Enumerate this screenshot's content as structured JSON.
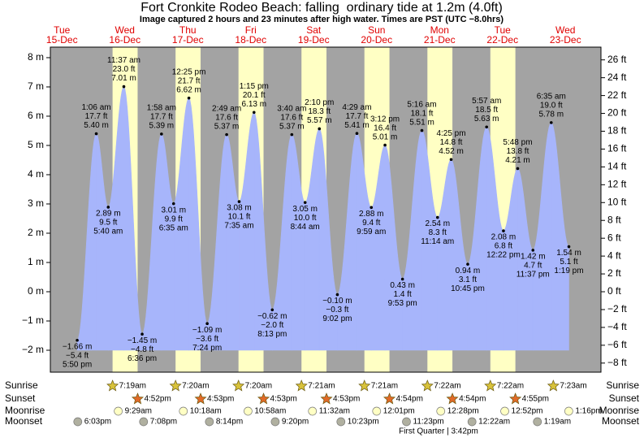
{
  "chart_data": {
    "type": "tide",
    "title": "Fort Cronkite Rodeo Beach: falling  ordinary tide at 1.2m (4.0ft)",
    "subtitle": "Image captured 2 hours and 23 minutes after high water. Times are PST (UTC −8.0hrs)",
    "ylim": [
      -2.75,
      8.36
    ],
    "yticks": [
      {
        "value": -2,
        "label": "−2 m"
      },
      {
        "value": -1,
        "label": "−1 m"
      },
      {
        "value": 0,
        "label": "0 m"
      },
      {
        "value": 1,
        "label": "1 m"
      },
      {
        "value": 2,
        "label": "2 m"
      },
      {
        "value": 3,
        "label": "3 m"
      },
      {
        "value": 4,
        "label": "4 m"
      },
      {
        "value": 5,
        "label": "5 m"
      },
      {
        "value": 6,
        "label": "6 m"
      },
      {
        "value": 7,
        "label": "7 m"
      },
      {
        "value": 8,
        "label": "8 m"
      }
    ],
    "y2lim": [
      -9.02,
      27.43
    ],
    "y2ticks": [
      {
        "value": -8,
        "label": "−8 ft"
      },
      {
        "value": -6,
        "label": "−6 ft"
      },
      {
        "value": -4,
        "label": "−4 ft"
      },
      {
        "value": -2,
        "label": "−2 ft"
      },
      {
        "value": 0,
        "label": "0 ft"
      },
      {
        "value": 2,
        "label": "2 ft"
      },
      {
        "value": 4,
        "label": "4 ft"
      },
      {
        "value": 6,
        "label": "6 ft"
      },
      {
        "value": 8,
        "label": "8 ft"
      },
      {
        "value": 10,
        "label": "10 ft"
      },
      {
        "value": 12,
        "label": "12 ft"
      },
      {
        "value": 14,
        "label": "14 ft"
      },
      {
        "value": 16,
        "label": "16 ft"
      },
      {
        "value": 18,
        "label": "18 ft"
      },
      {
        "value": 20,
        "label": "20 ft"
      },
      {
        "value": 22,
        "label": "22 ft"
      },
      {
        "value": 24,
        "label": "24 ft"
      },
      {
        "value": 26,
        "label": "26 ft"
      }
    ],
    "colors": {
      "night": "#a3a3a3",
      "day": "#ffffc4",
      "water": "#a7b5fb",
      "dates": "#e00000"
    },
    "event_labels": {
      "sunrise": "Sunrise",
      "sunset": "Sunset",
      "moonrise": "Moonrise",
      "moonset": "Moonset"
    },
    "moon_phase": "First Quarter | 3:42pm",
    "days": [
      {
        "weekday": "Tue",
        "date": "15-Dec",
        "sunrise": null,
        "sunset": null,
        "moonrise": null,
        "moonset": "6:03pm",
        "tides": [
          {
            "time": "5:50 pm",
            "value": -1.66,
            "value_label": "−1.66 m",
            "ft_label": "−5.4 ft"
          }
        ]
      },
      {
        "weekday": "Wed",
        "date": "16-Dec",
        "sunrise": "7:19am",
        "sunset": "4:52pm",
        "moonrise": "9:29am",
        "moonset": "7:08pm",
        "tides": [
          {
            "time": "1:06 am",
            "value": 5.4,
            "value_label": "5.40 m",
            "ft_label": "17.7 ft"
          },
          {
            "time": "5:40 am",
            "value": 2.89,
            "value_label": "2.89 m",
            "ft_label": "9.5 ft"
          },
          {
            "time": "11:37 am",
            "value": 7.01,
            "value_label": "7.01 m",
            "ft_label": "23.0 ft"
          },
          {
            "time": "6:36 pm",
            "value": -1.45,
            "value_label": "−1.45 m",
            "ft_label": "−4.8 ft"
          }
        ]
      },
      {
        "weekday": "Thu",
        "date": "17-Dec",
        "sunrise": "7:20am",
        "sunset": "4:53pm",
        "moonrise": "10:18am",
        "moonset": "8:14pm",
        "tides": [
          {
            "time": "1:58 am",
            "value": 5.39,
            "value_label": "5.39 m",
            "ft_label": "17.7 ft"
          },
          {
            "time": "6:35 am",
            "value": 3.01,
            "value_label": "3.01 m",
            "ft_label": "9.9 ft"
          },
          {
            "time": "12:25 pm",
            "value": 6.62,
            "value_label": "6.62 m",
            "ft_label": "21.7 ft"
          },
          {
            "time": "7:24 pm",
            "value": -1.09,
            "value_label": "−1.09 m",
            "ft_label": "−3.6 ft"
          }
        ]
      },
      {
        "weekday": "Fri",
        "date": "18-Dec",
        "sunrise": "7:20am",
        "sunset": "4:53pm",
        "moonrise": "10:58am",
        "moonset": "9:20pm",
        "tides": [
          {
            "time": "2:49 am",
            "value": 5.37,
            "value_label": "5.37 m",
            "ft_label": "17.6 ft"
          },
          {
            "time": "7:35 am",
            "value": 3.08,
            "value_label": "3.08 m",
            "ft_label": "10.1 ft"
          },
          {
            "time": "1:15 pm",
            "value": 6.13,
            "value_label": "6.13 m",
            "ft_label": "20.1 ft"
          },
          {
            "time": "8:13 pm",
            "value": -0.62,
            "value_label": "−0.62 m",
            "ft_label": "−2.0 ft"
          }
        ]
      },
      {
        "weekday": "Sat",
        "date": "19-Dec",
        "sunrise": "7:21am",
        "sunset": "4:53pm",
        "moonrise": "11:32am",
        "moonset": "10:23pm",
        "tides": [
          {
            "time": "3:40 am",
            "value": 5.37,
            "value_label": "5.37 m",
            "ft_label": "17.6 ft"
          },
          {
            "time": "8:44 am",
            "value": 3.05,
            "value_label": "3.05 m",
            "ft_label": "10.0 ft"
          },
          {
            "time": "2:10 pm",
            "value": 5.57,
            "value_label": "5.57 m",
            "ft_label": "18.3 ft"
          },
          {
            "time": "9:02 pm",
            "value": -0.1,
            "value_label": "−0.10 m",
            "ft_label": "−0.3 ft"
          }
        ]
      },
      {
        "weekday": "Sun",
        "date": "20-Dec",
        "sunrise": "7:21am",
        "sunset": "4:54pm",
        "moonrise": "12:01pm",
        "moonset": "11:23pm",
        "tides": [
          {
            "time": "4:29 am",
            "value": 5.41,
            "value_label": "5.41 m",
            "ft_label": "17.7 ft"
          },
          {
            "time": "9:59 am",
            "value": 2.88,
            "value_label": "2.88 m",
            "ft_label": "9.4 ft"
          },
          {
            "time": "3:12 pm",
            "value": 5.01,
            "value_label": "5.01 m",
            "ft_label": "16.4 ft"
          },
          {
            "time": "9:53 pm",
            "value": 0.43,
            "value_label": "0.43 m",
            "ft_label": "1.4 ft"
          }
        ]
      },
      {
        "weekday": "Mon",
        "date": "21-Dec",
        "sunrise": "7:22am",
        "sunset": "4:54pm",
        "moonrise": "12:28pm",
        "moonset": null,
        "tides": [
          {
            "time": "5:16 am",
            "value": 5.51,
            "value_label": "5.51 m",
            "ft_label": "18.1 ft"
          },
          {
            "time": "11:14 am",
            "value": 2.54,
            "value_label": "2.54 m",
            "ft_label": "8.3 ft"
          },
          {
            "time": "4:25 pm",
            "value": 4.52,
            "value_label": "4.52 m",
            "ft_label": "14.8 ft"
          },
          {
            "time": "10:45 pm",
            "value": 0.94,
            "value_label": "0.94 m",
            "ft_label": "3.1 ft"
          }
        ]
      },
      {
        "weekday": "Tue",
        "date": "22-Dec",
        "sunrise": "7:22am",
        "sunset": "4:55pm",
        "moonrise": "12:52pm",
        "moonset": "12:22am",
        "tides": [
          {
            "time": "5:57 am",
            "value": 5.63,
            "value_label": "5.63 m",
            "ft_label": "18.5 ft"
          },
          {
            "time": "12:22 pm",
            "value": 2.08,
            "value_label": "2.08 m",
            "ft_label": "6.8 ft"
          },
          {
            "time": "5:48 pm",
            "value": 4.21,
            "value_label": "4.21 m",
            "ft_label": "13.8 ft"
          },
          {
            "time": "11:37 pm",
            "value": 1.42,
            "value_label": "1.42 m",
            "ft_label": "4.7 ft"
          }
        ]
      },
      {
        "weekday": "Wed",
        "date": "23-Dec",
        "sunrise": "7:23am",
        "sunset": null,
        "moonrise": "1:16pm",
        "moonset": "1:19am",
        "tides": [
          {
            "time": "6:35 am",
            "value": 5.78,
            "value_label": "5.78 m",
            "ft_label": "19.0 ft"
          },
          {
            "time": "1:19 pm",
            "value": 1.54,
            "value_label": "1.54 m",
            "ft_label": "5.1 ft"
          }
        ]
      }
    ]
  }
}
